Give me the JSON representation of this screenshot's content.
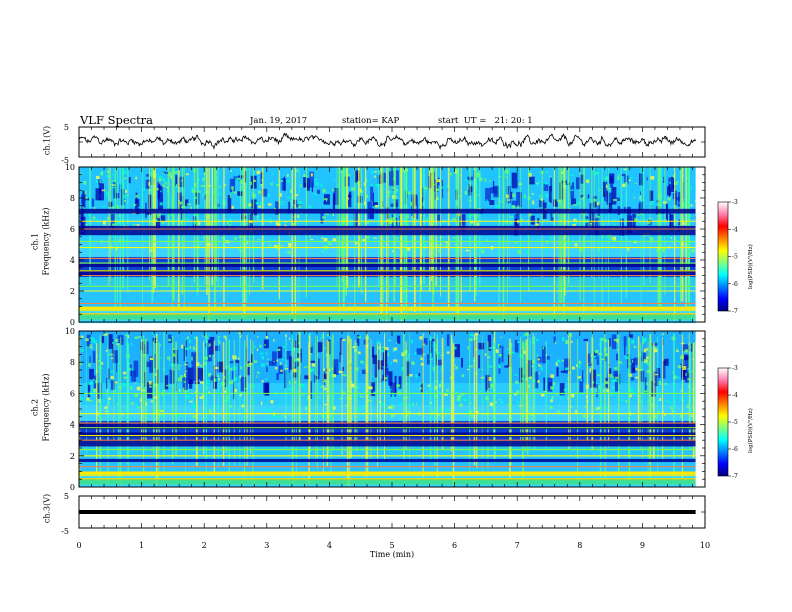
{
  "header": {
    "title": "VLF Spectra",
    "date": "Jan. 19, 2017",
    "station": "station= KAP",
    "start_ut": "start  UT =   21: 20: 1"
  },
  "panels": {
    "ch1_wave_label": "ch.1(V)",
    "ch1_spec_label_1": "ch.1",
    "ch1_spec_label_2": "Frequency (kHz)",
    "ch2_spec_label_1": "ch.2",
    "ch2_spec_label_2": "Frequency (kHz)",
    "ch3_wave_label": "ch.3(V)",
    "colorbar_title": "log(PSD)(V²/Hz)"
  },
  "colors": {
    "scale": [
      "#00007f",
      "#0000ff",
      "#0080ff",
      "#00ffff",
      "#80ff80",
      "#ffff00",
      "#ff8000",
      "#ff0000",
      "#ff80b0",
      "#ffffff"
    ]
  },
  "chart_data": [
    {
      "type": "line",
      "name_label": "ch.1(V)",
      "ylabel": "ch.1(V)",
      "ylim": [
        -5,
        5
      ],
      "y_ticks": [
        "5",
        "-5"
      ],
      "xlim": [
        0,
        10
      ],
      "x_data_extent": [
        0,
        9.85
      ],
      "description_values": {
        "x": [
          0,
          1,
          2,
          3,
          4,
          5,
          6,
          7,
          8,
          9,
          9.85
        ],
        "y": [
          0.5,
          0.2,
          0.3,
          0.6,
          0.5,
          0.4,
          -0.2,
          0.1,
          0.3,
          0.2,
          0.4
        ]
      }
    },
    {
      "type": "heatmap",
      "ylabel": "ch.1 Frequency (kHz)",
      "ylim": [
        0,
        10
      ],
      "y_ticks": [
        "0",
        "2",
        "4",
        "6",
        "8",
        "10"
      ],
      "xlim": [
        0,
        10
      ],
      "colorbar": {
        "label": "log(PSD)(V²/Hz)",
        "range": [
          -7,
          -3
        ],
        "ticks": [
          "-3",
          "-4",
          "-5",
          "-6",
          "-7"
        ]
      },
      "bands_khz": [
        0.5,
        0.9,
        1.2,
        2.0,
        2.3,
        3.0,
        3.3,
        3.8,
        4.1,
        4.8,
        5.2,
        6.0,
        6.5
      ]
    },
    {
      "type": "heatmap",
      "ylabel": "ch.2 Frequency (kHz)",
      "ylim": [
        0,
        10
      ],
      "y_ticks": [
        "0",
        "2",
        "4",
        "6",
        "8",
        "10"
      ],
      "xlim": [
        0,
        10
      ],
      "colorbar": {
        "label": "log(PSD)(V²/Hz)",
        "range": [
          -7,
          -3
        ],
        "ticks": [
          "-3",
          "-4",
          "-5",
          "-6",
          "-7"
        ]
      },
      "bands_khz": [
        0.5,
        0.9,
        1.3,
        2.0,
        2.4,
        3.0,
        3.3,
        3.8,
        4.1,
        4.7,
        6.0
      ]
    },
    {
      "type": "line",
      "ylabel": "ch.3(V)",
      "ylim": [
        -5,
        5
      ],
      "y_ticks": [
        "5",
        "-5"
      ],
      "xlim": [
        0,
        10
      ],
      "x_data_extent": [
        0,
        9.85
      ],
      "constant_value": 0
    }
  ],
  "xaxis": {
    "label": "Time (min)",
    "ticks": [
      "0",
      "1",
      "2",
      "3",
      "4",
      "5",
      "6",
      "7",
      "8",
      "9",
      "10"
    ]
  }
}
